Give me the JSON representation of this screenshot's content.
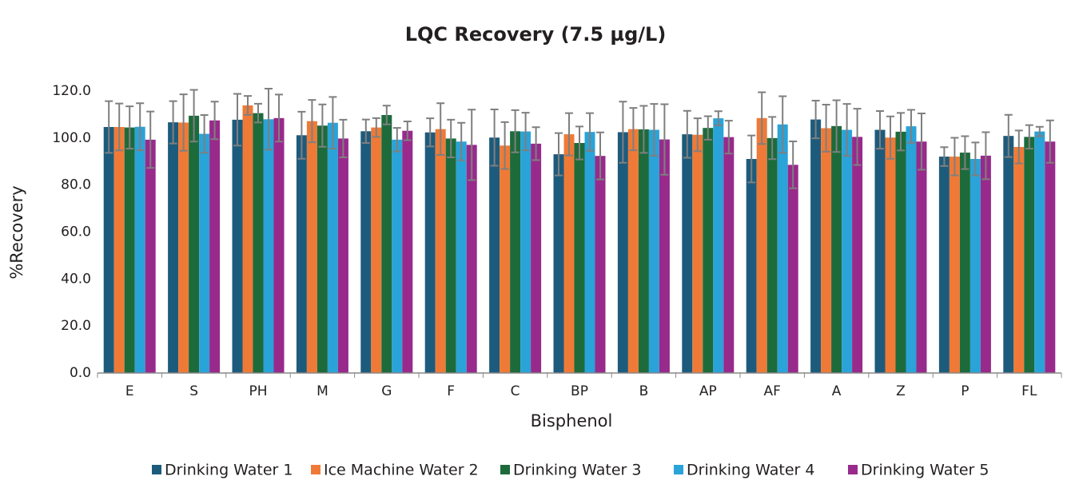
{
  "chart_data": {
    "type": "bar",
    "title": "LQC Recovery (7.5  µg/L)",
    "x_label": "Bisphenol",
    "y_label": "%Recovery",
    "categories": [
      "E",
      "S",
      "PH",
      "M",
      "G",
      "F",
      "C",
      "BP",
      "B",
      "AP",
      "AF",
      "A",
      "Z",
      "P",
      "FL"
    ],
    "series": [
      {
        "name": "Drinking Water 1",
        "color": "#1d5b7c",
        "values": [
          104.7,
          106.7,
          107.8,
          101.2,
          102.9,
          102.4,
          100.2,
          93.1,
          102.5,
          101.6,
          91.1,
          107.9,
          103.5,
          92.1,
          100.9
        ],
        "errors": [
          11,
          9,
          11,
          10,
          5,
          6,
          12,
          9,
          13,
          10,
          10,
          8,
          8,
          4,
          9
        ]
      },
      {
        "name": "Ice Machine Water 2",
        "color": "#ef7a37",
        "values": [
          104.7,
          106.6,
          113.9,
          107.2,
          104.5,
          103.8,
          96.8,
          101.6,
          103.8,
          101.4,
          108.5,
          104.2,
          100.2,
          92.1,
          96.2
        ],
        "errors": [
          10,
          12,
          4,
          9,
          4,
          11,
          10,
          9,
          9,
          7,
          11,
          10,
          9,
          8,
          7
        ]
      },
      {
        "name": "Drinking Water 3",
        "color": "#1d6b3b",
        "values": [
          104.5,
          109.5,
          110.6,
          105.3,
          109.8,
          99.8,
          102.9,
          97.9,
          103.7,
          104.3,
          100.0,
          105.1,
          102.7,
          93.8,
          100.5
        ],
        "errors": [
          9,
          11,
          4,
          9,
          4,
          8,
          9,
          7,
          10,
          5,
          9,
          11,
          8,
          7,
          5
        ]
      },
      {
        "name": "Drinking Water 4",
        "color": "#2aa3d8",
        "values": [
          104.8,
          101.8,
          108.0,
          106.5,
          99.3,
          98.5,
          102.8,
          102.6,
          103.5,
          108.4,
          105.8,
          103.5,
          105.0,
          91.1,
          102.8
        ],
        "errors": [
          10,
          8,
          13,
          11,
          5,
          8,
          8,
          8,
          11,
          3,
          12,
          11,
          7,
          7,
          2
        ]
      },
      {
        "name": "Drinking Water 5",
        "color": "#982a8c",
        "values": [
          99.3,
          107.5,
          108.5,
          99.8,
          103.1,
          97.1,
          97.6,
          92.4,
          99.4,
          100.4,
          88.6,
          100.5,
          98.5,
          92.5,
          98.5
        ],
        "errors": [
          12,
          8,
          10,
          8,
          4,
          15,
          7,
          10,
          15,
          7,
          10,
          12,
          12,
          10,
          9
        ]
      }
    ],
    "ylim": [
      0,
      120
    ],
    "yticks": [
      {
        "value": 0,
        "label": "0.0"
      },
      {
        "value": 20,
        "label": "20.0"
      },
      {
        "value": 40,
        "label": "40.0"
      },
      {
        "value": 60,
        "label": "60.0"
      },
      {
        "value": 80,
        "label": "80.0"
      },
      {
        "value": 100,
        "label": "100.0"
      },
      {
        "value": 120,
        "label": "120.0"
      }
    ],
    "error_color": "#7f7f7f"
  }
}
